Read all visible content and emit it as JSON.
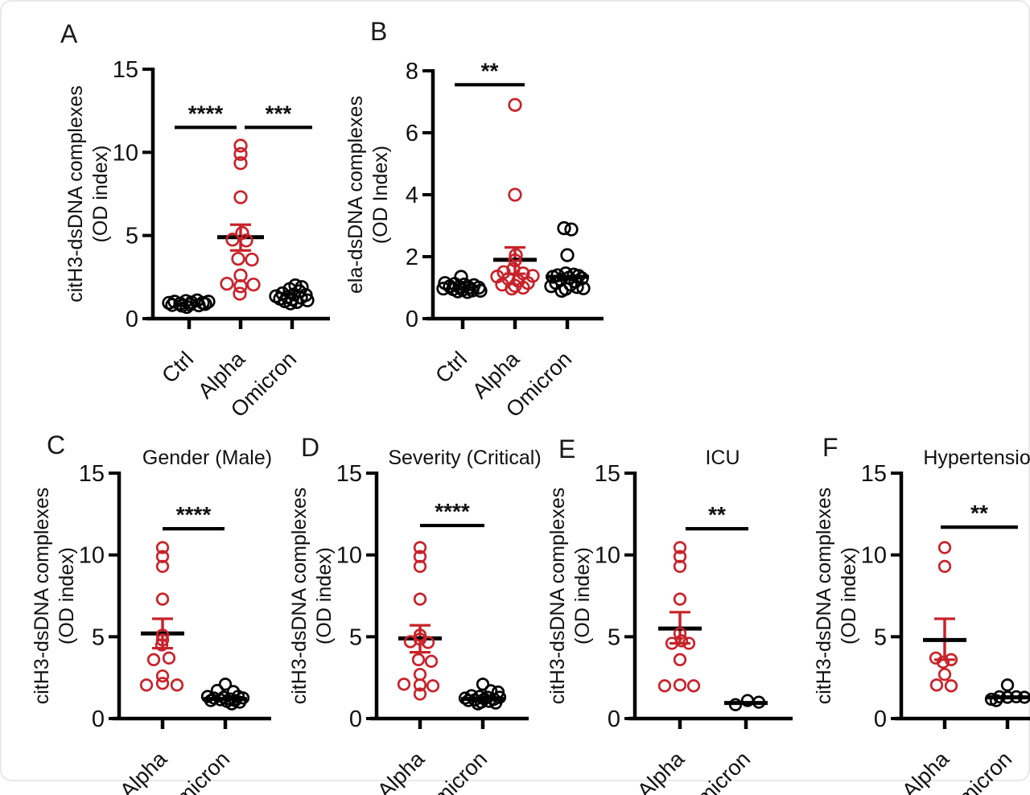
{
  "colors": {
    "black": "#000000",
    "red": "#c8222a",
    "text": "#111111"
  },
  "chart_data": [
    {
      "letter": "A",
      "title": "",
      "type": "scatter",
      "ylabel_line1": "citH3-dsDNA complexes",
      "ylabel_line2": "(OD index)",
      "ylim": [
        0,
        15
      ],
      "yticks": [
        0,
        5,
        10,
        15
      ],
      "categories": [
        "Ctrl",
        "Alpha",
        "Omicron"
      ],
      "groups": [
        {
          "category": "Ctrl",
          "color": "black",
          "points": [
            [
              -25,
              0.95
            ],
            [
              -18,
              1.02
            ],
            [
              -11,
              0.9
            ],
            [
              -4,
              1.06
            ],
            [
              3,
              0.97
            ],
            [
              10,
              1.1
            ],
            [
              17,
              0.95
            ],
            [
              24,
              1.02
            ],
            [
              -21,
              0.82
            ],
            [
              -9,
              0.78
            ],
            [
              1,
              0.85
            ],
            [
              12,
              0.8
            ],
            [
              20,
              0.88
            ],
            [
              -3,
              0.7
            ]
          ]
        },
        {
          "category": "Alpha",
          "color": "red",
          "mean": 4.9,
          "err_low": 4.1,
          "err_high": 5.65,
          "points": [
            [
              0,
              10.4
            ],
            [
              0,
              9.9
            ],
            [
              0,
              9.35
            ],
            [
              0,
              7.3
            ],
            [
              2,
              5.15
            ],
            [
              -10,
              4.75
            ],
            [
              7,
              4.7
            ],
            [
              -3,
              3.6
            ],
            [
              14,
              3.55
            ],
            [
              0,
              2.6
            ],
            [
              -17,
              2.1
            ],
            [
              16,
              2.05
            ],
            [
              0,
              1.95
            ],
            [
              -1,
              1.5
            ]
          ]
        },
        {
          "category": "Omicron",
          "color": "black",
          "points": [
            [
              4,
              2.0
            ],
            [
              12,
              1.9
            ],
            [
              -3,
              1.78
            ],
            [
              9,
              1.65
            ],
            [
              -12,
              1.52
            ],
            [
              2,
              1.45
            ],
            [
              17,
              1.42
            ],
            [
              -20,
              1.35
            ],
            [
              -6,
              1.3
            ],
            [
              11,
              1.26
            ],
            [
              -15,
              1.2
            ],
            [
              0,
              1.16
            ],
            [
              19,
              1.1
            ],
            [
              -9,
              1.05
            ],
            [
              6,
              1.0
            ],
            [
              -2,
              0.92
            ]
          ]
        }
      ],
      "significance": [
        {
          "from": 0,
          "to": 1,
          "y": 11.5,
          "label": "****"
        },
        {
          "from": 1,
          "to": 2,
          "y": 11.5,
          "label": "***"
        }
      ]
    },
    {
      "letter": "B",
      "title": "",
      "type": "scatter",
      "ylabel_line1": "ela-dsDNA complexes",
      "ylabel_line2": "(OD Index)",
      "ylim": [
        0,
        8
      ],
      "yticks": [
        0,
        2,
        4,
        6,
        8
      ],
      "categories": [
        "Ctrl",
        "Alpha",
        "Omicron"
      ],
      "groups": [
        {
          "category": "Ctrl",
          "color": "black",
          "points": [
            [
              -2,
              1.35
            ],
            [
              -22,
              1.15
            ],
            [
              -10,
              1.12
            ],
            [
              2,
              1.1
            ],
            [
              14,
              1.08
            ],
            [
              -16,
              1.04
            ],
            [
              -4,
              1.02
            ],
            [
              8,
              1.0
            ],
            [
              20,
              1.0
            ],
            [
              -24,
              0.97
            ],
            [
              -12,
              0.95
            ],
            [
              0,
              0.93
            ],
            [
              12,
              0.91
            ],
            [
              22,
              0.9
            ],
            [
              -6,
              0.88
            ],
            [
              6,
              0.86
            ]
          ]
        },
        {
          "category": "Alpha",
          "color": "red",
          "mean": 1.9,
          "err_low": 1.45,
          "err_high": 2.3,
          "points": [
            [
              0,
              6.9
            ],
            [
              0,
              4.0
            ],
            [
              1,
              2.05
            ],
            [
              0,
              1.88
            ],
            [
              -2,
              1.6
            ],
            [
              -14,
              1.5
            ],
            [
              10,
              1.46
            ],
            [
              -22,
              1.36
            ],
            [
              22,
              1.38
            ],
            [
              -8,
              1.28
            ],
            [
              4,
              1.22
            ],
            [
              16,
              1.15
            ],
            [
              -16,
              1.1
            ],
            [
              0,
              1.06
            ],
            [
              10,
              1.0
            ],
            [
              -4,
              0.97
            ]
          ]
        },
        {
          "category": "Omicron",
          "color": "black",
          "mean": 1.35,
          "points": [
            [
              -4,
              2.92
            ],
            [
              5,
              2.88
            ],
            [
              0,
              2.05
            ],
            [
              -2,
              1.46
            ],
            [
              8,
              1.42
            ],
            [
              -12,
              1.4
            ],
            [
              14,
              1.38
            ],
            [
              -18,
              1.35
            ],
            [
              2,
              1.32
            ],
            [
              18,
              1.3
            ],
            [
              -8,
              1.25
            ],
            [
              10,
              1.2
            ],
            [
              -14,
              1.15
            ],
            [
              4,
              1.1
            ],
            [
              -20,
              1.05
            ],
            [
              12,
              1.02
            ],
            [
              -2,
              0.96
            ],
            [
              20,
              0.98
            ],
            [
              -7,
              0.9
            ]
          ]
        }
      ],
      "significance": [
        {
          "from": 0,
          "to": 1,
          "y": 7.55,
          "label": "**"
        }
      ]
    },
    {
      "letter": "C",
      "title": "Gender (Male)",
      "type": "scatter",
      "ylabel_line1": "citH3-dsDNA complexes",
      "ylabel_line2": "(OD index)",
      "ylim": [
        0,
        15
      ],
      "yticks": [
        0,
        5,
        10,
        15
      ],
      "categories": [
        "Alpha",
        "Omicron"
      ],
      "groups": [
        {
          "category": "Alpha",
          "color": "red",
          "mean": 5.2,
          "err_low": 4.3,
          "err_high": 6.1,
          "points": [
            [
              0,
              10.45
            ],
            [
              0,
              9.9
            ],
            [
              0,
              9.3
            ],
            [
              0,
              7.3
            ],
            [
              0,
              5.1
            ],
            [
              0,
              4.8
            ],
            [
              -1,
              4.5
            ],
            [
              -11,
              3.6
            ],
            [
              8,
              3.7
            ],
            [
              0,
              2.6
            ],
            [
              -20,
              2.05
            ],
            [
              0,
              2.15
            ],
            [
              18,
              2.05
            ]
          ]
        },
        {
          "category": "Omicron",
          "color": "black",
          "mean": 1.2,
          "points": [
            [
              0,
              2.1
            ],
            [
              -10,
              1.72
            ],
            [
              10,
              1.65
            ],
            [
              -22,
              1.35
            ],
            [
              -2,
              1.3
            ],
            [
              16,
              1.36
            ],
            [
              -14,
              1.25
            ],
            [
              6,
              1.2
            ],
            [
              22,
              1.26
            ],
            [
              -6,
              1.15
            ],
            [
              12,
              1.1
            ],
            [
              -18,
              1.1
            ],
            [
              2,
              1.05
            ],
            [
              18,
              1.0
            ],
            [
              8,
              0.9
            ]
          ]
        }
      ],
      "significance": [
        {
          "from": 0,
          "to": 1,
          "y": 11.6,
          "label": "****"
        }
      ]
    },
    {
      "letter": "D",
      "title": "Severity (Critical)",
      "type": "scatter",
      "ylabel_line1": "citH3-dsDNA complexes",
      "ylabel_line2": "(OD index)",
      "ylim": [
        0,
        15
      ],
      "yticks": [
        0,
        5,
        10,
        15
      ],
      "categories": [
        "Alpha",
        "Omicron"
      ],
      "groups": [
        {
          "category": "Alpha",
          "color": "red",
          "mean": 4.9,
          "err_low": 4.05,
          "err_high": 5.7,
          "points": [
            [
              0,
              10.45
            ],
            [
              0,
              9.9
            ],
            [
              0,
              9.3
            ],
            [
              0,
              7.3
            ],
            [
              0,
              5.1
            ],
            [
              -12,
              4.7
            ],
            [
              0,
              4.85
            ],
            [
              10,
              4.65
            ],
            [
              -2,
              3.6
            ],
            [
              14,
              3.5
            ],
            [
              0,
              2.7
            ],
            [
              -20,
              2.1
            ],
            [
              0,
              2.05
            ],
            [
              16,
              2.0
            ],
            [
              0,
              1.5
            ]
          ]
        },
        {
          "category": "Omicron",
          "color": "black",
          "mean": 1.2,
          "points": [
            [
              0,
              2.1
            ],
            [
              10,
              1.7
            ],
            [
              19,
              1.62
            ],
            [
              -14,
              1.4
            ],
            [
              -4,
              1.35
            ],
            [
              6,
              1.3
            ],
            [
              21,
              1.3
            ],
            [
              -22,
              1.25
            ],
            [
              2,
              1.2
            ],
            [
              14,
              1.18
            ],
            [
              -10,
              1.14
            ],
            [
              -18,
              1.1
            ],
            [
              8,
              1.05
            ],
            [
              -2,
              1.0
            ],
            [
              16,
              0.95
            ],
            [
              -6,
              0.9
            ]
          ]
        }
      ],
      "significance": [
        {
          "from": 0,
          "to": 1,
          "y": 11.8,
          "label": "****"
        }
      ]
    },
    {
      "letter": "E",
      "title": "ICU",
      "type": "scatter",
      "ylabel_line1": "citH3-dsDNA complexes",
      "ylabel_line2": "(OD index)",
      "ylim": [
        0,
        15
      ],
      "yticks": [
        0,
        5,
        10,
        15
      ],
      "categories": [
        "Alpha",
        "Omicron"
      ],
      "groups": [
        {
          "category": "Alpha",
          "color": "red",
          "mean": 5.5,
          "err_low": 4.6,
          "err_high": 6.5,
          "points": [
            [
              0,
              10.45
            ],
            [
              0,
              9.9
            ],
            [
              0,
              9.3
            ],
            [
              0,
              7.3
            ],
            [
              0,
              5.2
            ],
            [
              2,
              4.75
            ],
            [
              -10,
              4.6
            ],
            [
              11,
              4.6
            ],
            [
              0,
              3.6
            ],
            [
              -19,
              2.0
            ],
            [
              0,
              2.05
            ],
            [
              17,
              2.0
            ]
          ]
        },
        {
          "category": "Omicron",
          "color": "black",
          "mean": 0.95,
          "points": [
            [
              -13,
              0.85
            ],
            [
              2,
              1.1
            ],
            [
              16,
              1.0
            ]
          ]
        }
      ],
      "significance": [
        {
          "from": 0,
          "to": 1,
          "y": 11.6,
          "label": "**"
        }
      ]
    },
    {
      "letter": "F",
      "title": "Hypertension",
      "type": "scatter",
      "ylabel_line1": "citH3-dsDNA complexes",
      "ylabel_line2": "(OD index)",
      "ylim": [
        0,
        15
      ],
      "yticks": [
        0,
        5,
        10,
        15
      ],
      "categories": [
        "Alpha",
        "Omicron"
      ],
      "groups": [
        {
          "category": "Alpha",
          "color": "red",
          "mean": 4.8,
          "err_low": 3.6,
          "err_high": 6.1,
          "points": [
            [
              0,
              10.45
            ],
            [
              0,
              9.3
            ],
            [
              -11,
              3.7
            ],
            [
              8,
              3.6
            ],
            [
              -2,
              3.45
            ],
            [
              0,
              2.7
            ],
            [
              -10,
              2.05
            ],
            [
              8,
              2.0
            ]
          ]
        },
        {
          "category": "Omicron",
          "color": "black",
          "mean": 1.3,
          "points": [
            [
              0,
              2.05
            ],
            [
              -20,
              1.18
            ],
            [
              -10,
              1.33
            ],
            [
              0,
              1.3
            ],
            [
              11,
              1.33
            ],
            [
              21,
              1.3
            ],
            [
              -14,
              1.1
            ]
          ]
        }
      ],
      "significance": [
        {
          "from": 0,
          "to": 1,
          "y": 11.7,
          "label": "**"
        }
      ]
    }
  ]
}
